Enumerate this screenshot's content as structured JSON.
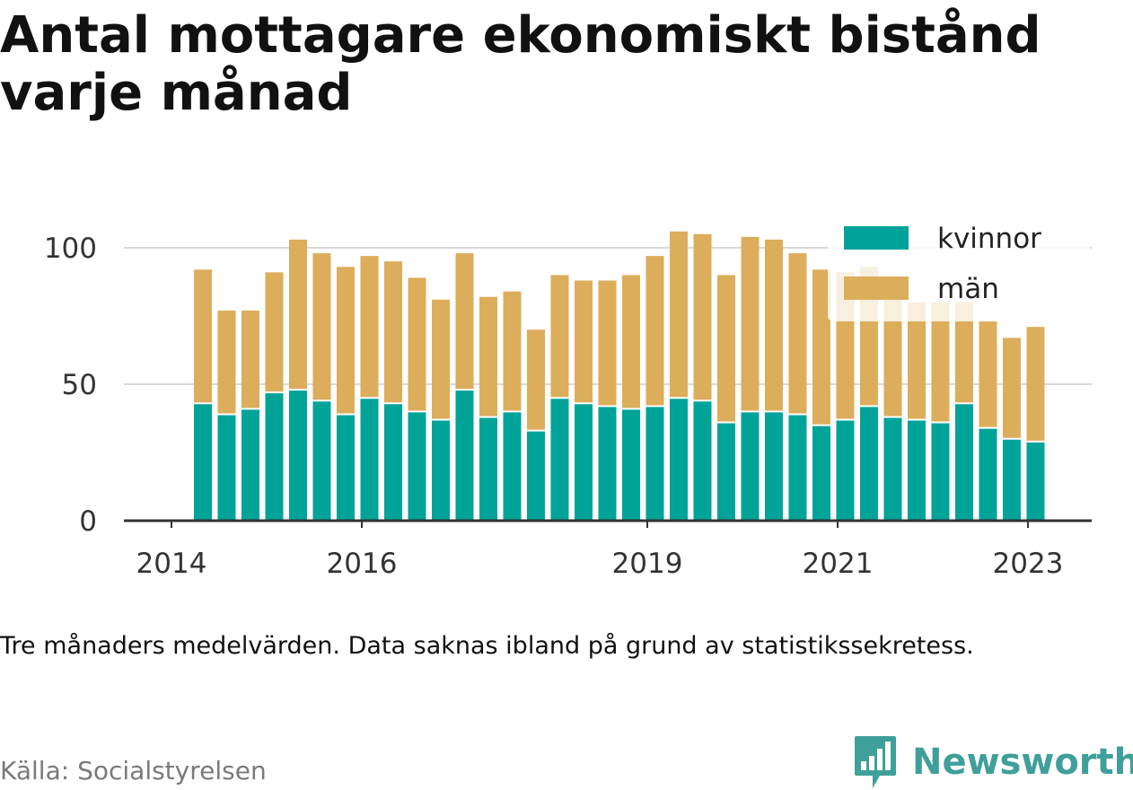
{
  "chart_data": {
    "type": "bar",
    "stacked": true,
    "title": "Antal mottagare ekonomiskt bistånd varje månad",
    "subtitle": "Tre månaders medelvärden. Data saknas ibland på grund av statistikssekretess.",
    "x_tick_labels": [
      "2014",
      "2016",
      "2019",
      "2021",
      "2023"
    ],
    "x_ticks": [
      2014,
      2016,
      2019,
      2021,
      2023
    ],
    "x_range": [
      2013.5,
      2023.67
    ],
    "ylim": [
      0,
      100
    ],
    "y_ticks": [
      0,
      50,
      100
    ],
    "grid": true,
    "legend_position": "top-right",
    "x": [
      2014.33,
      2014.58,
      2014.83,
      2015.08,
      2015.33,
      2015.58,
      2015.83,
      2016.08,
      2016.33,
      2016.58,
      2016.83,
      2017.08,
      2017.33,
      2017.58,
      2017.83,
      2018.08,
      2018.33,
      2018.58,
      2018.83,
      2019.08,
      2019.33,
      2019.58,
      2019.83,
      2020.08,
      2020.33,
      2020.58,
      2020.83,
      2021.08,
      2021.33,
      2021.58,
      2021.83,
      2022.08,
      2022.33,
      2022.58,
      2022.83,
      2023.08
    ],
    "series": [
      {
        "name": "kvinnor",
        "color": "#00a398",
        "values": [
          43,
          39,
          41,
          47,
          48,
          44,
          39,
          45,
          43,
          40,
          37,
          48,
          38,
          40,
          33,
          45,
          43,
          42,
          41,
          42,
          45,
          44,
          36,
          40,
          40,
          39,
          35,
          37,
          42,
          38,
          37,
          36,
          43,
          34,
          30,
          29
        ]
      },
      {
        "name": "män",
        "color": "#dcad5b",
        "values": [
          49,
          38,
          36,
          44,
          55,
          54,
          54,
          52,
          52,
          49,
          44,
          50,
          44,
          44,
          37,
          45,
          45,
          46,
          49,
          55,
          61,
          61,
          54,
          64,
          63,
          59,
          57,
          54,
          51,
          48,
          43,
          44,
          37,
          39,
          37,
          42
        ]
      }
    ]
  },
  "footer": {
    "source": "Källa: Socialstyrelsen",
    "brand": "Newsworthy",
    "brand_icon": "newsworthy-logo-icon"
  }
}
